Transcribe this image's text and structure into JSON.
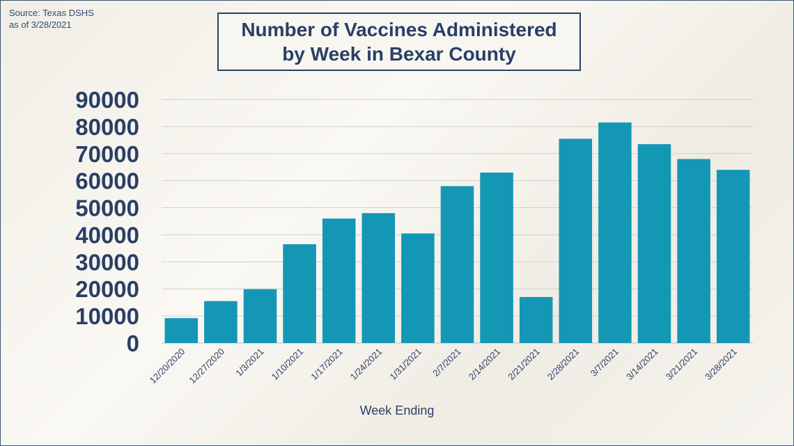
{
  "source": {
    "line1": "Source: Texas DSHS",
    "line2": "as of 3/28/2021"
  },
  "title": {
    "line1": "Number of Vaccines Administered",
    "line2": "by Week in Bexar County"
  },
  "colors": {
    "bar": "#1497b5",
    "title": "#2a3f66",
    "grid": "#cfcfcf"
  },
  "chart_data": {
    "type": "bar",
    "title": "Number of Vaccines Administered by Week in Bexar County",
    "xlabel": "Week Ending",
    "ylabel": "",
    "ylim": [
      0,
      90000
    ],
    "yticks": [
      0,
      10000,
      20000,
      30000,
      40000,
      50000,
      60000,
      70000,
      80000,
      90000
    ],
    "grid": true,
    "legend": "none",
    "categories": [
      "12/20/2020",
      "12/27/2020",
      "1/3/2021",
      "1/10/2021",
      "1/17/2021",
      "1/24/2021",
      "1/31/2021",
      "2/7/2021",
      "2/14/2021",
      "2/21/2021",
      "2/28/2021",
      "3/7/2021",
      "3/14/2021",
      "3/21/2021",
      "3/28/2021"
    ],
    "values": [
      9200,
      15500,
      19900,
      36500,
      46000,
      48000,
      40500,
      58000,
      63000,
      17000,
      75500,
      81500,
      73500,
      68000,
      64000
    ]
  }
}
